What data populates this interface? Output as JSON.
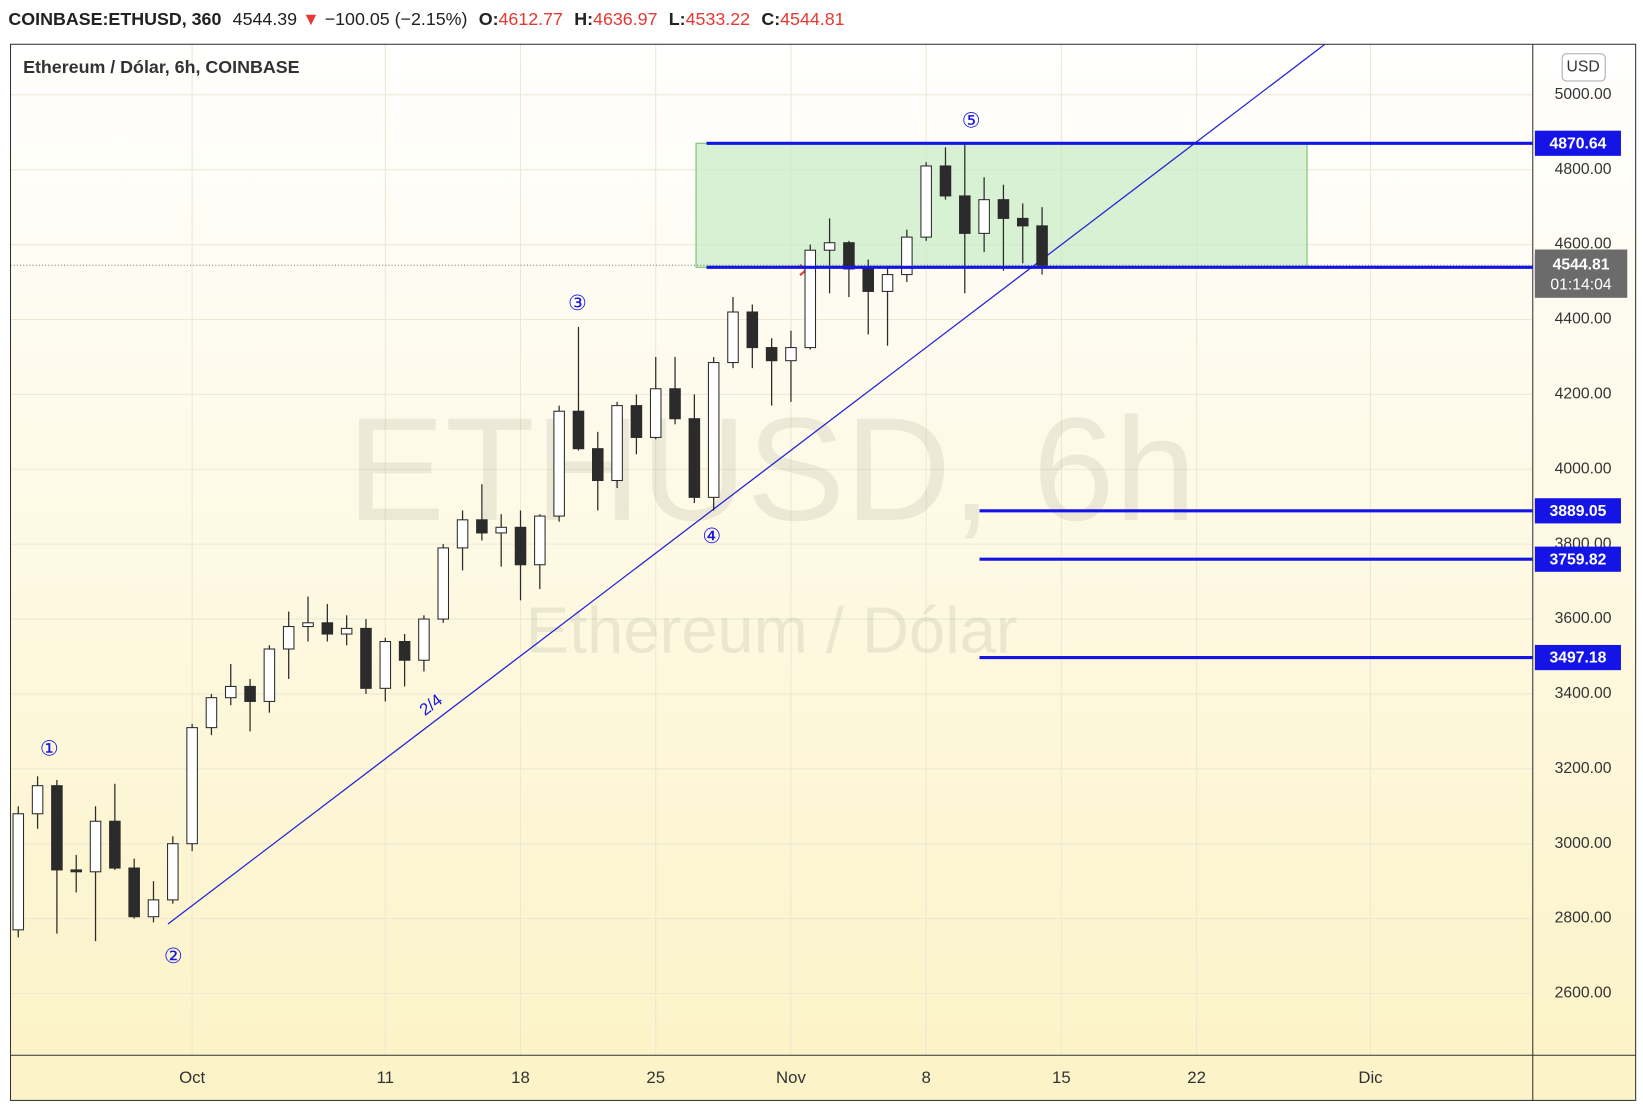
{
  "chart_data": {
    "type": "candlestick",
    "header": {
      "symbol": "COINBASE:ETHUSD, 360",
      "last": 4544.39,
      "change": "−100.05 (−2.15%)",
      "ohlc_labels": [
        "O:",
        "H:",
        "L:",
        "C:"
      ],
      "ohlc_values": [
        4612.77,
        4636.97,
        4533.22,
        4544.81
      ]
    },
    "title": "Ethereum / Dólar, 6h, COINBASE",
    "watermark": [
      "ETHUSD, 6h",
      "Ethereum / Dólar"
    ],
    "currency": "USD",
    "countdown": "01:14:04",
    "last_price": 4544.81,
    "categories": [
      null,
      null,
      null,
      null,
      null,
      null,
      null,
      null,
      null,
      "Oct",
      null,
      null,
      null,
      null,
      null,
      null,
      null,
      null,
      null,
      "11",
      null,
      null,
      null,
      null,
      null,
      null,
      "18",
      null,
      null,
      null,
      null,
      null,
      null,
      "25",
      null,
      null,
      null,
      null,
      null,
      null,
      "Nov",
      null,
      null,
      null,
      null,
      null,
      null,
      "8",
      null,
      null,
      null,
      null,
      null,
      null,
      "15",
      null,
      null,
      null,
      null,
      null,
      null,
      "22",
      null,
      null,
      null,
      null,
      null,
      null,
      null,
      null,
      "Dic",
      null,
      null,
      null,
      null,
      null,
      null,
      null
    ],
    "open": [
      2770,
      3080,
      3155,
      2930,
      2925,
      3060,
      2935,
      2805,
      2850,
      3000,
      3310,
      3390,
      3420,
      3380,
      3520,
      3580,
      3590,
      3560,
      3575,
      3415,
      3540,
      3490,
      3600,
      3790,
      3865,
      3830,
      3845,
      3745,
      3875,
      4155,
      4055,
      3970,
      4170,
      4085,
      4215,
      4135,
      3925,
      4285,
      4420,
      4325,
      4290,
      4325,
      4585,
      4605,
      4535,
      4475,
      4520,
      4620,
      4810,
      4730,
      4630,
      4720,
      4670,
      4650,
      null,
      null,
      null,
      null,
      null,
      null,
      null,
      null,
      null,
      null,
      null,
      null,
      null,
      null,
      null,
      null,
      null,
      null,
      null,
      null,
      null,
      null,
      null,
      null
    ],
    "high": [
      3100,
      3180,
      3170,
      2970,
      3100,
      3160,
      2960,
      2900,
      3020,
      3320,
      3400,
      3480,
      3440,
      3530,
      3620,
      3660,
      3640,
      3610,
      3600,
      3550,
      3560,
      3610,
      3800,
      3890,
      3960,
      3880,
      3890,
      3880,
      4170,
      4380,
      4100,
      4180,
      4200,
      4300,
      4300,
      4200,
      4300,
      4460,
      4440,
      4350,
      4370,
      4600,
      4670,
      4610,
      4560,
      4540,
      4640,
      4820,
      4860,
      4870,
      4780,
      4760,
      4710,
      4700,
      null,
      null,
      null,
      null,
      null,
      null,
      null,
      null,
      null,
      null,
      null,
      null,
      null,
      null,
      null,
      null,
      null,
      null,
      null,
      null,
      null,
      null,
      null,
      null
    ],
    "low": [
      2750,
      3040,
      2760,
      2870,
      2740,
      2930,
      2800,
      2790,
      2840,
      2980,
      3290,
      3370,
      3300,
      3350,
      3440,
      3540,
      3540,
      3530,
      3400,
      3380,
      3420,
      3460,
      3590,
      3730,
      3810,
      3740,
      3650,
      3680,
      3860,
      4050,
      3890,
      3950,
      4040,
      4080,
      4120,
      3910,
      3890,
      4270,
      4270,
      4170,
      4180,
      4320,
      4470,
      4460,
      4360,
      4330,
      4500,
      4610,
      4720,
      4470,
      4580,
      4530,
      4550,
      4520,
      null,
      null,
      null,
      null,
      null,
      null,
      null,
      null,
      null,
      null,
      null,
      null,
      null,
      null,
      null,
      null,
      null,
      null,
      null,
      null,
      null,
      null,
      null,
      null
    ],
    "close": [
      3080,
      3155,
      2930,
      2925,
      3060,
      2935,
      2805,
      2850,
      3000,
      3310,
      3390,
      3420,
      3380,
      3520,
      3580,
      3590,
      3560,
      3575,
      3415,
      3540,
      3490,
      3600,
      3790,
      3865,
      3830,
      3845,
      3745,
      3875,
      4155,
      4055,
      3970,
      4170,
      4085,
      4215,
      4135,
      3925,
      4285,
      4420,
      4325,
      4290,
      4325,
      4585,
      4605,
      4535,
      4475,
      4520,
      4620,
      4810,
      4730,
      4630,
      4720,
      4670,
      4650,
      4544.81,
      null,
      null,
      null,
      null,
      null,
      null,
      null,
      null,
      null,
      null,
      null,
      null,
      null,
      null,
      null,
      null,
      null,
      null,
      null,
      null,
      null,
      null,
      null,
      null
    ],
    "ylim": [
      2435,
      5135
    ],
    "yticks": [
      {
        "value": 2600,
        "label": "2600.00"
      },
      {
        "value": 2800,
        "label": "2800.00"
      },
      {
        "value": 3000,
        "label": "3000.00"
      },
      {
        "value": 3200,
        "label": "3200.00"
      },
      {
        "value": 3400,
        "label": "3400.00"
      },
      {
        "value": 3600,
        "label": "3600.00"
      },
      {
        "value": 3800,
        "label": "3800.00"
      },
      {
        "value": 4000,
        "label": "4000.00"
      },
      {
        "value": 4200,
        "label": "4200.00"
      },
      {
        "value": 4400,
        "label": "4400.00"
      },
      {
        "value": 4600,
        "label": "4600.00"
      },
      {
        "value": 4800,
        "label": "4800.00"
      },
      {
        "value": 5000,
        "label": "5000.00"
      }
    ],
    "levels": [
      4870.64,
      4539.46,
      3889.05,
      3759.82,
      3497.18
    ],
    "wave_labels": [
      "①",
      "②",
      "③",
      "④",
      "⑤",
      "2/4"
    ],
    "grid": true,
    "up_color": "#ffffff",
    "down_color": "#2b2b2b",
    "level_color": "#1414e6",
    "zone_color": "#c8ebc4"
  }
}
